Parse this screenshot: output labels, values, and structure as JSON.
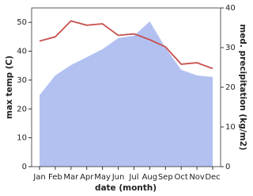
{
  "chart_data": {
    "type": "line",
    "x_label": "date (month)",
    "y_label": "max temp (C)",
    "y2_label": "med. precipitation (kg/m2)",
    "categories": [
      "Jan",
      "Feb",
      "Mar",
      "Apr",
      "May",
      "Jun",
      "Jul",
      "Aug",
      "Sep",
      "Oct",
      "Nov",
      "Dec"
    ],
    "ylim": [
      0,
      55
    ],
    "yticks": [
      0,
      10,
      20,
      30,
      40,
      50
    ],
    "y2lim": [
      0,
      40
    ],
    "y2ticks": [
      0,
      10,
      20,
      30,
      40
    ],
    "series": [
      {
        "type": "area",
        "axis": "y2",
        "color": "#b3c1f1",
        "values": [
          18,
          23,
          25.6,
          27.6,
          29.6,
          32.4,
          33,
          36.6,
          30,
          24.4,
          23,
          22.6
        ]
      },
      {
        "type": "line",
        "color": "#c8504f",
        "values": [
          43.5,
          45,
          50.5,
          49,
          49.5,
          45.5,
          46,
          44,
          41.5,
          35.5,
          36,
          34
        ]
      }
    ]
  }
}
